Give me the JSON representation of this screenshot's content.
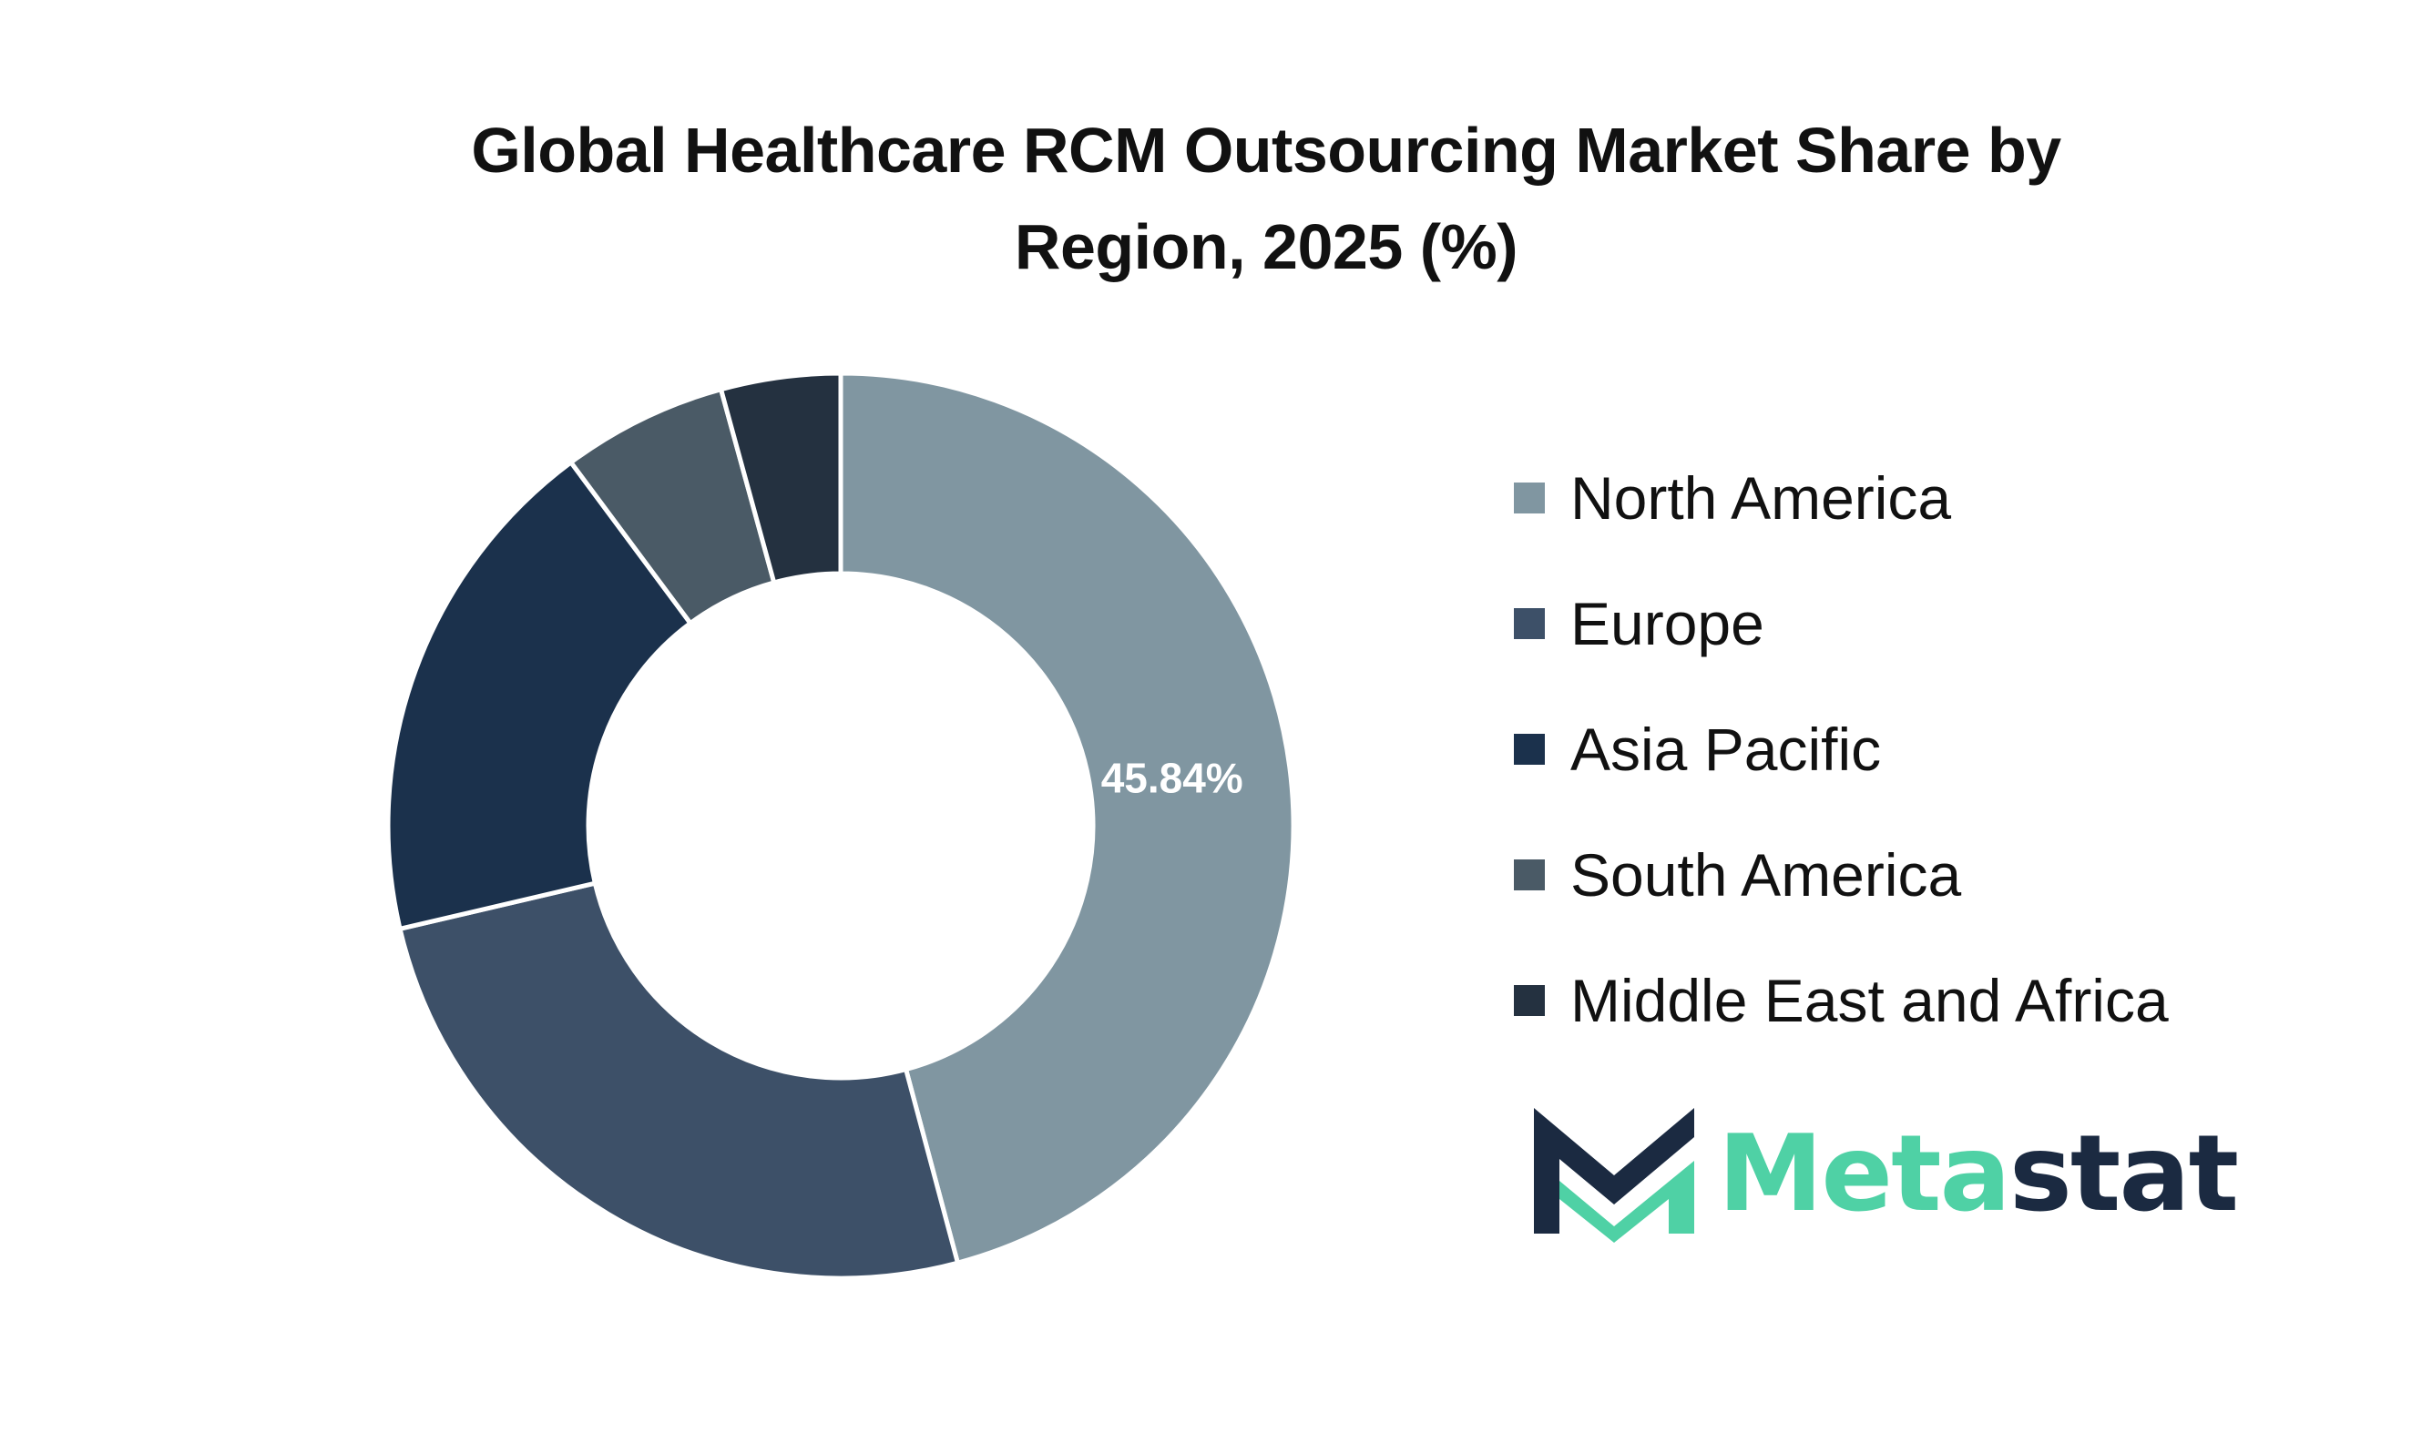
{
  "chart_data": {
    "type": "pie",
    "donut": true,
    "title_lines": [
      "Global Healthcare RCM Outsourcing Market Share by",
      "Region, 2025 (%)"
    ],
    "categories": [
      "North America",
      "Europe",
      "Asia Pacific",
      "South America",
      "Middle East and Africa"
    ],
    "values": [
      45.84,
      25.5,
      18.5,
      5.9,
      4.26
    ],
    "colors": [
      "#8096a1",
      "#3d5068",
      "#1b314c",
      "#4a5a66",
      "#243140"
    ],
    "data_labels": [
      "45.84%",
      "",
      "",
      "",
      ""
    ],
    "legend_position": "right"
  },
  "brand": {
    "name_part1": "Meta",
    "name_part2": "stat",
    "logo_colors": [
      "#4fd1a5",
      "#1b2a41"
    ]
  }
}
